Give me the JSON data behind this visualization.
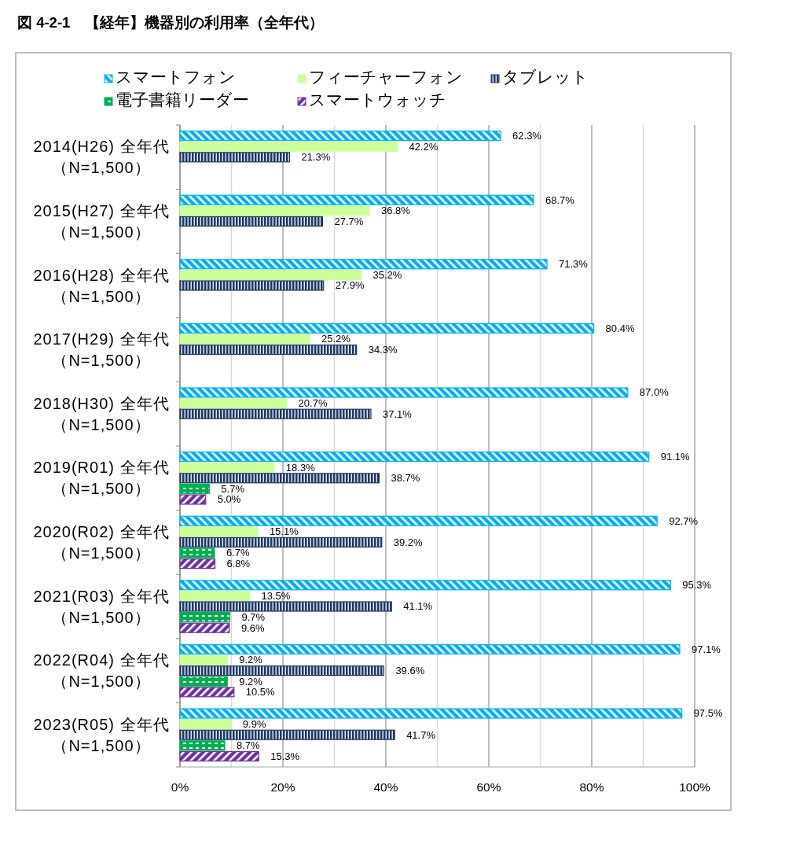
{
  "chart_data": {
    "type": "bar",
    "orientation": "horizontal",
    "title": "図 4-2-1　【経年】機器別の利用率（全年代）",
    "categories": [
      "2014(H26) 全年代（N=1,500）",
      "2015(H27) 全年代（N=1,500）",
      "2016(H28) 全年代（N=1,500）",
      "2017(H29) 全年代（N=1,500）",
      "2018(H30) 全年代（N=1,500）",
      "2019(R01) 全年代（N=1,500）",
      "2020(R02) 全年代（N=1,500）",
      "2021(R03) 全年代（N=1,500）",
      "2022(R04) 全年代（N=1,500）",
      "2023(R05) 全年代（N=1,500）"
    ],
    "series": [
      {
        "name": "スマートフォン",
        "color": "#00b0f0",
        "values": [
          62.3,
          68.7,
          71.3,
          80.4,
          87.0,
          91.1,
          92.7,
          95.3,
          97.1,
          97.5
        ],
        "value_labels": [
          "62.3%",
          "68.7%",
          "71.3%",
          "80.4%",
          "87.0%",
          "91.1%",
          "92.7%",
          "95.3%",
          "97.1%",
          "97.5%"
        ]
      },
      {
        "name": "フィーチャーフォン",
        "color": "#ccff99",
        "values": [
          42.2,
          36.8,
          35.2,
          25.2,
          20.7,
          18.3,
          15.1,
          13.5,
          9.2,
          9.9
        ],
        "value_labels": [
          "42.2%",
          "36.8%",
          "35.2%",
          "25.2%",
          "20.7%",
          "18.3%",
          "15.1%",
          "13.5%",
          "9.2%",
          "9.9%"
        ]
      },
      {
        "name": "タブレット",
        "color": "#1f3864",
        "values": [
          21.3,
          27.7,
          27.9,
          34.3,
          37.1,
          38.7,
          39.2,
          41.1,
          39.6,
          41.7
        ],
        "value_labels": [
          "21.3%",
          "27.7%",
          "27.9%",
          "34.3%",
          "37.1%",
          "38.7%",
          "39.2%",
          "41.1%",
          "39.6%",
          "41.7%"
        ]
      },
      {
        "name": "電子書籍リーダー",
        "color": "#00b050",
        "values": [
          null,
          null,
          null,
          null,
          null,
          5.7,
          6.7,
          9.7,
          9.2,
          8.7
        ],
        "value_labels": [
          null,
          null,
          null,
          null,
          null,
          "5.7%",
          "6.7%",
          "9.7%",
          "9.2%",
          "8.7%"
        ]
      },
      {
        "name": "スマートウォッチ",
        "color": "#7030a0",
        "values": [
          null,
          null,
          null,
          null,
          null,
          5.0,
          6.8,
          9.6,
          10.5,
          15.3
        ],
        "value_labels": [
          null,
          null,
          null,
          null,
          null,
          "5.0%",
          "6.8%",
          "9.6%",
          "10.5%",
          "15.3%"
        ]
      }
    ],
    "xlim": [
      0,
      100
    ],
    "xticks": [
      {
        "value": 0,
        "label": "0%"
      },
      {
        "value": 10,
        "label": null
      },
      {
        "value": 20,
        "label": "20%"
      },
      {
        "value": 30,
        "label": null
      },
      {
        "value": 40,
        "label": "40%"
      },
      {
        "value": 50,
        "label": null
      },
      {
        "value": 60,
        "label": "60%"
      },
      {
        "value": 70,
        "label": null
      },
      {
        "value": 80,
        "label": "80%"
      },
      {
        "value": 90,
        "label": null
      },
      {
        "value": 100,
        "label": "100%"
      }
    ],
    "grid": "x",
    "legend": "top"
  }
}
